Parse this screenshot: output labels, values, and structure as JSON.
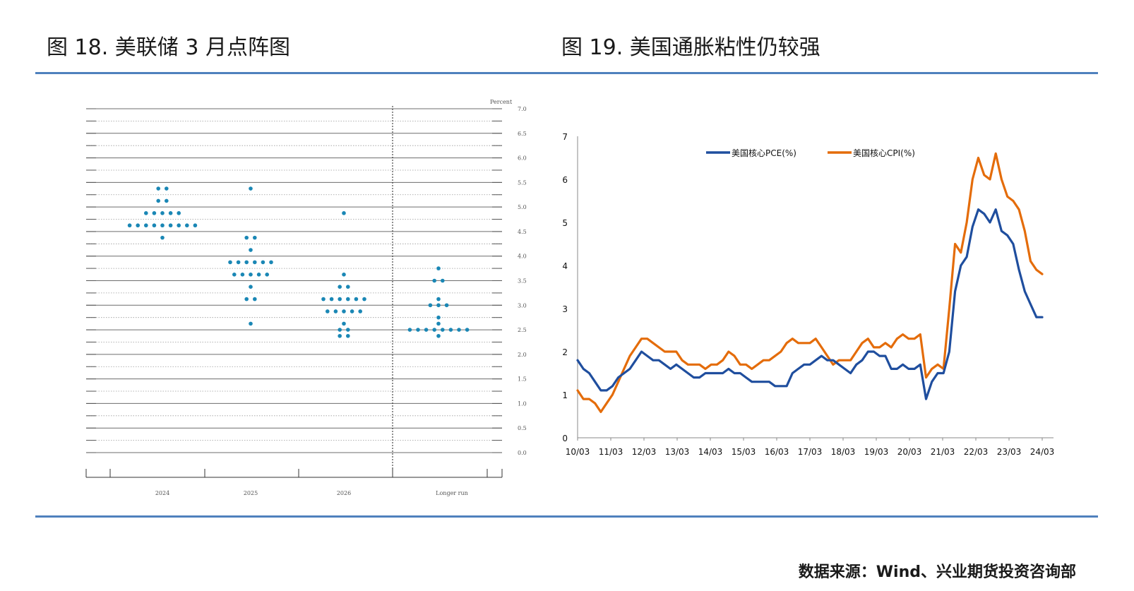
{
  "left_panel": {
    "figure_title": "图 18.  美联储 3 月点阵图"
  },
  "right_panel": {
    "figure_title": "图 19.  美国通胀粘性仍较强"
  },
  "footer": {
    "source": "数据来源：Wind、兴业期货投资咨询部"
  },
  "chart_data": [
    {
      "type": "scatter",
      "title": "",
      "ylabel": "Percent",
      "ylim": [
        0,
        7
      ],
      "yticks": [
        "7.0",
        "6.5",
        "6.0",
        "5.5",
        "5.0",
        "4.5",
        "4.0",
        "3.5",
        "3.0",
        "2.5",
        "2.0",
        "1.5",
        "1.0",
        "0.5",
        "0.0"
      ],
      "categories": [
        "2024",
        "2025",
        "2026",
        "Longer run"
      ],
      "dots": [
        {
          "category": "2024",
          "rows": [
            {
              "rate": 5.375,
              "count": 2
            },
            {
              "rate": 5.125,
              "count": 2
            },
            {
              "rate": 4.875,
              "count": 5
            },
            {
              "rate": 4.625,
              "count": 9
            },
            {
              "rate": 4.375,
              "count": 1
            }
          ]
        },
        {
          "category": "2025",
          "rows": [
            {
              "rate": 5.375,
              "count": 1
            },
            {
              "rate": 4.375,
              "count": 2
            },
            {
              "rate": 4.125,
              "count": 1
            },
            {
              "rate": 3.875,
              "count": 6
            },
            {
              "rate": 3.625,
              "count": 5
            },
            {
              "rate": 3.375,
              "count": 1
            },
            {
              "rate": 3.125,
              "count": 2
            },
            {
              "rate": 2.625,
              "count": 1
            }
          ]
        },
        {
          "category": "2026",
          "rows": [
            {
              "rate": 4.875,
              "count": 1
            },
            {
              "rate": 3.625,
              "count": 1
            },
            {
              "rate": 3.375,
              "count": 2
            },
            {
              "rate": 3.125,
              "count": 6
            },
            {
              "rate": 2.875,
              "count": 5
            },
            {
              "rate": 2.625,
              "count": 1
            },
            {
              "rate": 2.5,
              "count": 2
            },
            {
              "rate": 2.375,
              "count": 2
            }
          ]
        },
        {
          "category": "Longer run",
          "rows": [
            {
              "rate": 3.75,
              "count": 1
            },
            {
              "rate": 3.5,
              "count": 2
            },
            {
              "rate": 3.125,
              "count": 1
            },
            {
              "rate": 3.0,
              "count": 3
            },
            {
              "rate": 2.75,
              "count": 1
            },
            {
              "rate": 2.625,
              "count": 1
            },
            {
              "rate": 2.5,
              "count": 8
            },
            {
              "rate": 2.375,
              "count": 1
            }
          ]
        }
      ],
      "dot_color": "#1a87b5"
    },
    {
      "type": "line",
      "title": "",
      "ylim": [
        0,
        7
      ],
      "yticks": [
        "0",
        "1",
        "2",
        "3",
        "4",
        "5",
        "6",
        "7"
      ],
      "xticks": [
        "10/03",
        "11/03",
        "12/03",
        "13/03",
        "14/03",
        "15/03",
        "16/03",
        "17/03",
        "18/03",
        "19/03",
        "20/03",
        "21/03",
        "22/03",
        "23/03",
        "24/03"
      ],
      "x_start": "2010-03",
      "x_end": "2024-03",
      "series": [
        {
          "name": "美国核心PCE(%)",
          "color": "#1f4e9e",
          "values": [
            1.8,
            1.6,
            1.5,
            1.3,
            1.1,
            1.1,
            1.2,
            1.4,
            1.5,
            1.6,
            1.8,
            2.0,
            1.9,
            1.8,
            1.8,
            1.7,
            1.6,
            1.7,
            1.6,
            1.5,
            1.4,
            1.4,
            1.5,
            1.5,
            1.5,
            1.5,
            1.6,
            1.5,
            1.5,
            1.4,
            1.3,
            1.3,
            1.3,
            1.3,
            1.2,
            1.2,
            1.2,
            1.5,
            1.6,
            1.7,
            1.7,
            1.8,
            1.9,
            1.8,
            1.8,
            1.7,
            1.6,
            1.5,
            1.7,
            1.8,
            2.0,
            2.0,
            1.9,
            1.9,
            1.6,
            1.6,
            1.7,
            1.6,
            1.6,
            1.7,
            0.9,
            1.3,
            1.5,
            1.5,
            2.0,
            3.4,
            4.0,
            4.2,
            4.9,
            5.3,
            5.2,
            5.0,
            5.3,
            4.8,
            4.7,
            4.5,
            3.9,
            3.4,
            3.1,
            2.8,
            2.8
          ]
        },
        {
          "name": "美国核心CPI(%)",
          "color": "#e46c0a",
          "values": [
            1.1,
            0.9,
            0.9,
            0.8,
            0.6,
            0.8,
            1.0,
            1.3,
            1.6,
            1.9,
            2.1,
            2.3,
            2.3,
            2.2,
            2.1,
            2.0,
            2.0,
            2.0,
            1.8,
            1.7,
            1.7,
            1.7,
            1.6,
            1.7,
            1.7,
            1.8,
            2.0,
            1.9,
            1.7,
            1.7,
            1.6,
            1.7,
            1.8,
            1.8,
            1.9,
            2.0,
            2.2,
            2.3,
            2.2,
            2.2,
            2.2,
            2.3,
            2.1,
            1.9,
            1.7,
            1.8,
            1.8,
            1.8,
            2.0,
            2.2,
            2.3,
            2.1,
            2.1,
            2.2,
            2.1,
            2.3,
            2.4,
            2.3,
            2.3,
            2.4,
            1.4,
            1.6,
            1.7,
            1.6,
            3.0,
            4.5,
            4.3,
            5.0,
            6.0,
            6.5,
            6.1,
            6.0,
            6.6,
            6.0,
            5.6,
            5.5,
            5.3,
            4.8,
            4.1,
            3.9,
            3.8
          ]
        }
      ]
    }
  ]
}
